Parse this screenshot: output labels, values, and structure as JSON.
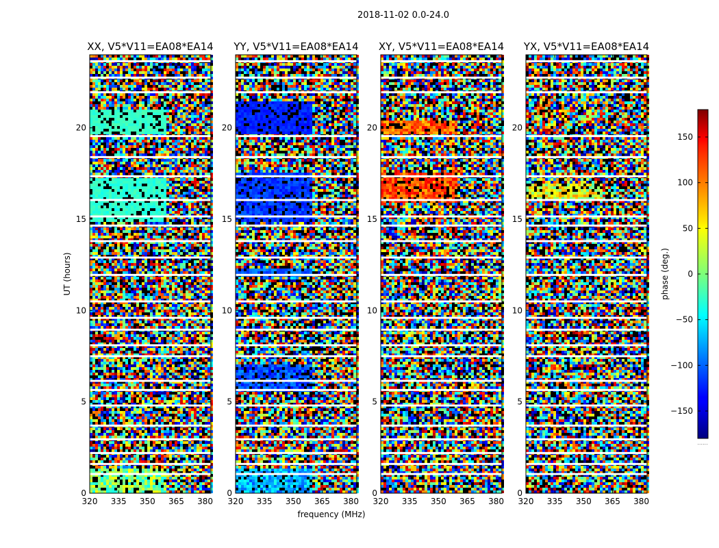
{
  "chart_data": {
    "type": "heatmap",
    "suptitle": "2018-11-02 0.0-24.0",
    "xlabel": "frequency (MHz)",
    "ylabel": "UT (hours)",
    "xlim": [
      320,
      383
    ],
    "ylim": [
      0,
      24
    ],
    "xticks": [
      320,
      335,
      350,
      365,
      380
    ],
    "yticks": [
      0,
      5,
      10,
      15,
      20
    ],
    "panels": [
      {
        "title": "XX, V5*V11=EA08*EA14",
        "pol": "XX"
      },
      {
        "title": "YY, V5*V11=EA08*EA14",
        "pol": "YY"
      },
      {
        "title": "XY, V5*V11=EA08*EA14",
        "pol": "XY"
      },
      {
        "title": "YX, V5*V11=EA08*EA14",
        "pol": "YX"
      }
    ],
    "colorbar": {
      "label": "phase (deg.)",
      "colormap": "jet",
      "range": [
        -180,
        180
      ],
      "ticks": [
        150,
        100,
        50,
        0,
        -50,
        -100,
        -150
      ],
      "extra_label": "......"
    },
    "flagged_gaps_hours": [
      23.65,
      22.75,
      21.95,
      19.55,
      18.4,
      17.35,
      16.05,
      15.15,
      14.65,
      13.8,
      12.9,
      11.95,
      10.5,
      9.6,
      8.95,
      8.1,
      7.5,
      6.15,
      5.65,
      4.8,
      3.7,
      2.95,
      2.2,
      1.6,
      1.05
    ]
  }
}
